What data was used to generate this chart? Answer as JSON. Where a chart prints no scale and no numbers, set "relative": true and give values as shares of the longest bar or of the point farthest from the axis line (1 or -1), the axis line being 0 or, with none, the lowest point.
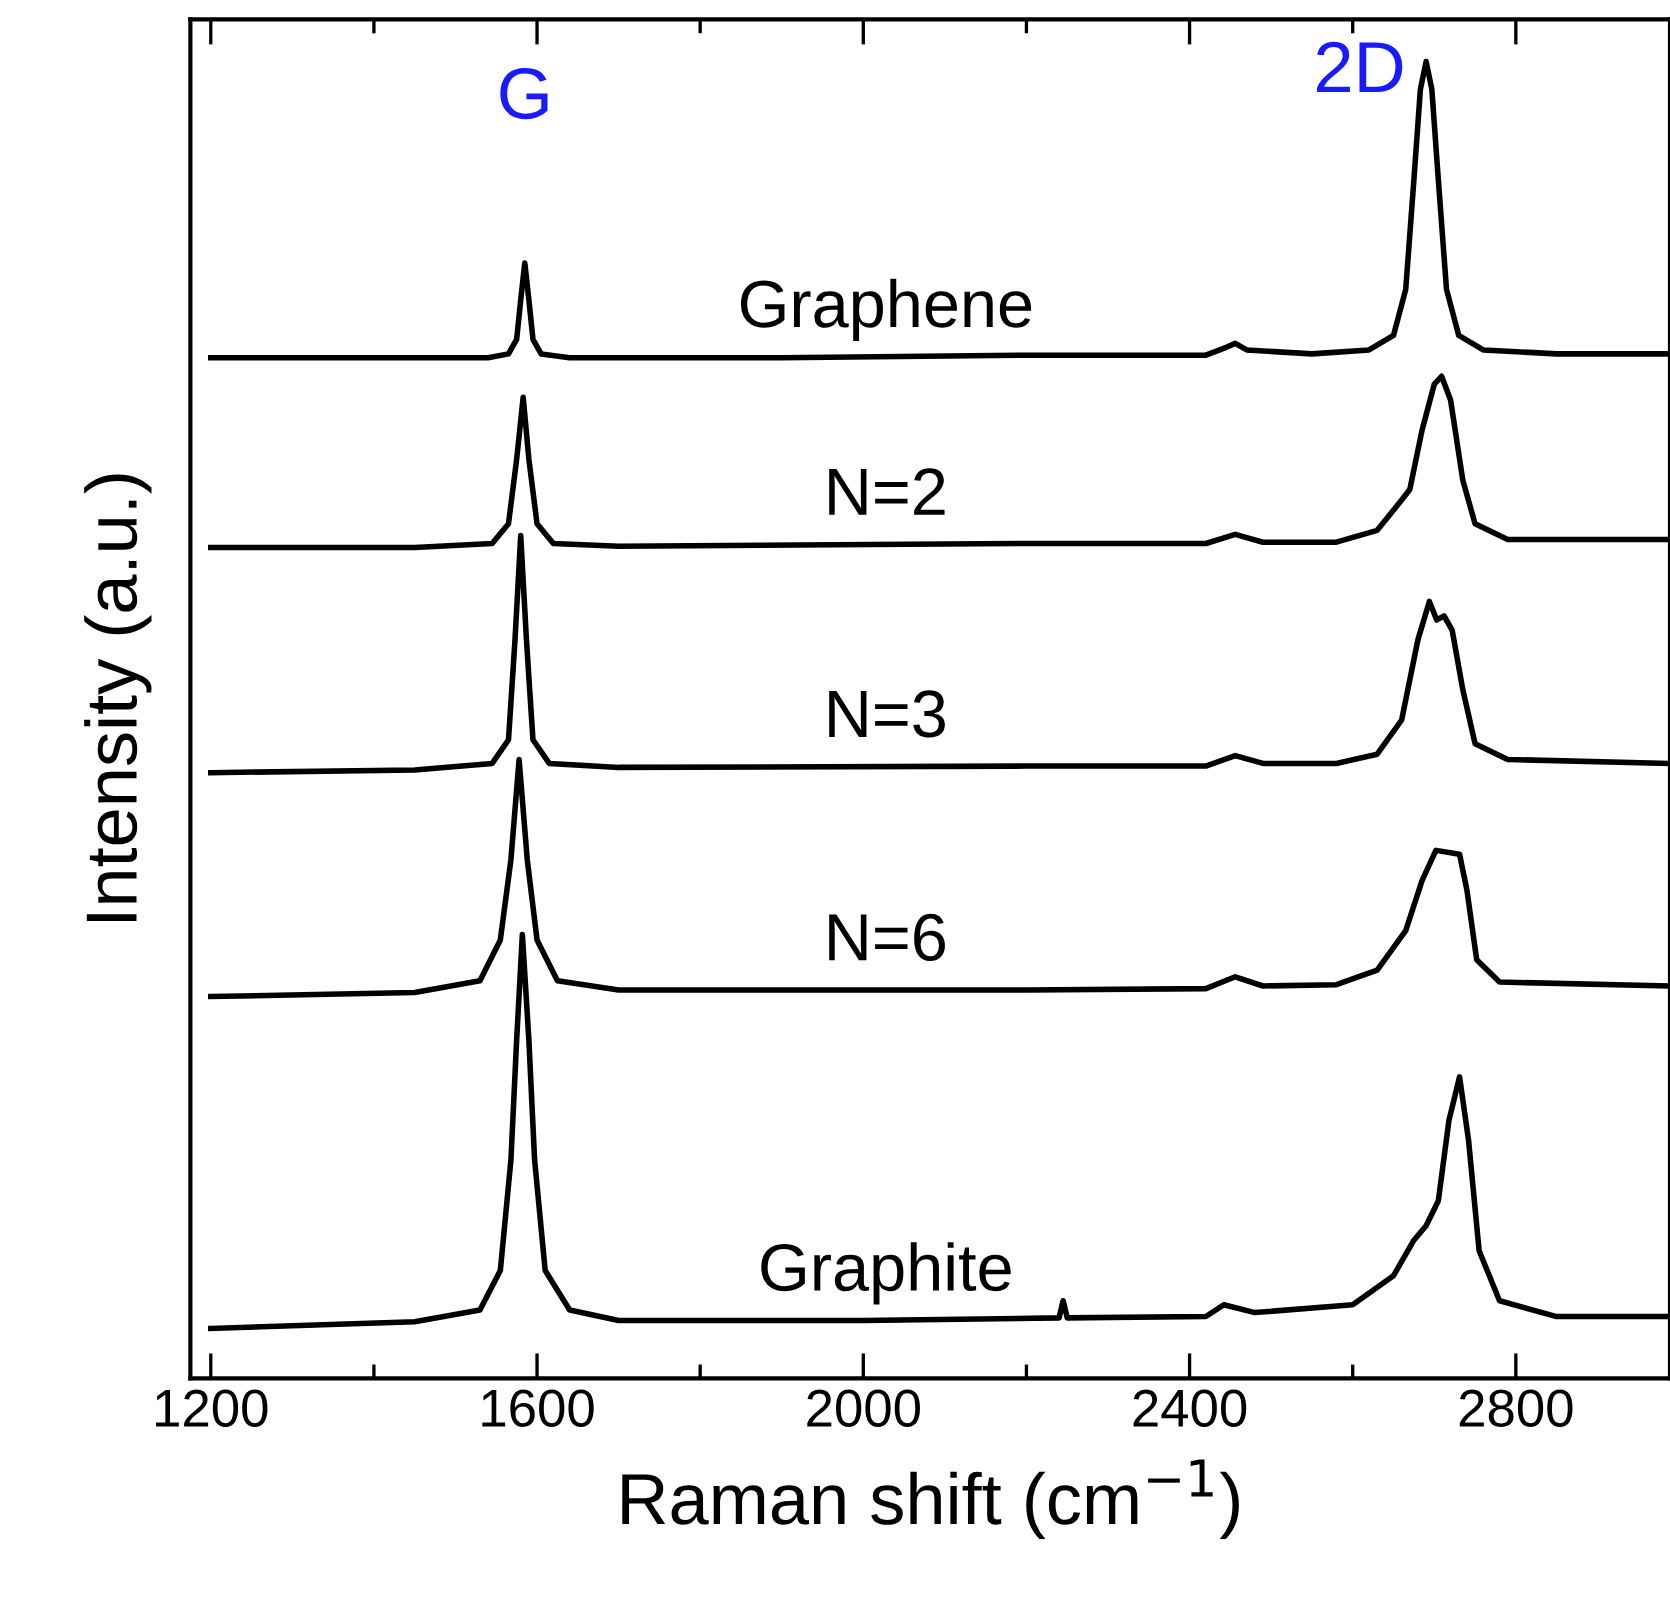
{
  "chart_data": {
    "type": "line",
    "relative": true,
    "xlabel": "Raman shift (cm$^{−1}$)",
    "ylabel": "Intensity (a.u.)",
    "xlim": [
      1175,
      2989
    ],
    "xticks": [
      1200,
      {
        "value": 1400,
        "label": null
      },
      1600,
      {
        "value": 1800,
        "label": null
      },
      2000,
      {
        "value": 2200,
        "label": null
      },
      2400,
      {
        "value": 2600,
        "label": null
      },
      2800
    ],
    "tick_labels": "x",
    "grid": false,
    "legend": false,
    "marker": "none",
    "line_style": "solid",
    "annotations": [
      "G",
      "2D"
    ],
    "series": [
      {
        "name": "Graphene",
        "color": "#000000",
        "x": [
          1200,
          1400,
          1540,
          1565,
          1575,
          1580,
          1585,
          1590,
          1595,
          1605,
          1640,
          1900,
          2200,
          2420,
          2445,
          2456,
          2470,
          2550,
          2620,
          2650,
          2665,
          2675,
          2683,
          2690,
          2697,
          2705,
          2715,
          2730,
          2760,
          2850,
          2989
        ],
        "values": [
          0.775,
          0.775,
          0.775,
          0.778,
          0.789,
          0.819,
          0.847,
          0.819,
          0.789,
          0.778,
          0.775,
          0.775,
          0.777,
          0.777,
          0.783,
          0.786,
          0.781,
          0.778,
          0.781,
          0.792,
          0.827,
          0.91,
          0.979,
          1.0,
          0.979,
          0.91,
          0.827,
          0.792,
          0.781,
          0.778,
          0.778
        ]
      },
      {
        "name": "N=2",
        "color": "#000000",
        "x": [
          1200,
          1450,
          1545,
          1565,
          1575,
          1583,
          1590,
          1600,
          1620,
          1700,
          2200,
          2420,
          2456,
          2490,
          2580,
          2630,
          2660,
          2670,
          2685,
          2700,
          2709,
          2720,
          2735,
          2750,
          2790,
          2989
        ],
        "values": [
          0.631,
          0.631,
          0.634,
          0.649,
          0.698,
          0.745,
          0.698,
          0.649,
          0.634,
          0.632,
          0.634,
          0.634,
          0.641,
          0.635,
          0.635,
          0.644,
          0.667,
          0.675,
          0.72,
          0.755,
          0.761,
          0.743,
          0.682,
          0.649,
          0.637,
          0.637
        ]
      },
      {
        "name": "N=3",
        "color": "#000000",
        "x": [
          1200,
          1450,
          1545,
          1565,
          1573,
          1580,
          1587,
          1595,
          1615,
          1700,
          2200,
          2420,
          2456,
          2490,
          2580,
          2630,
          2660,
          2680,
          2694,
          2703,
          2712,
          2722,
          2735,
          2750,
          2790,
          2989
        ],
        "values": [
          0.46,
          0.462,
          0.467,
          0.485,
          0.561,
          0.64,
          0.561,
          0.485,
          0.467,
          0.464,
          0.465,
          0.465,
          0.473,
          0.467,
          0.467,
          0.474,
          0.5,
          0.561,
          0.59,
          0.576,
          0.579,
          0.568,
          0.523,
          0.482,
          0.47,
          0.467
        ]
      },
      {
        "name": "N=6",
        "color": "#000000",
        "x": [
          1200,
          1450,
          1530,
          1555,
          1568,
          1578,
          1588,
          1600,
          1625,
          1700,
          2200,
          2420,
          2456,
          2490,
          2580,
          2630,
          2665,
          2685,
          2702,
          2731,
          2740,
          2752,
          2780,
          2989
        ],
        "values": [
          0.29,
          0.293,
          0.302,
          0.333,
          0.394,
          0.47,
          0.394,
          0.333,
          0.302,
          0.295,
          0.295,
          0.296,
          0.305,
          0.298,
          0.299,
          0.31,
          0.34,
          0.378,
          0.401,
          0.398,
          0.371,
          0.318,
          0.301,
          0.298
        ]
      },
      {
        "name": "Graphite",
        "color": "#000000",
        "x": [
          1200,
          1450,
          1530,
          1555,
          1568,
          1575,
          1582,
          1590,
          1597,
          1610,
          1640,
          1700,
          2000,
          2240,
          2245,
          2250,
          2420,
          2442,
          2480,
          2600,
          2650,
          2675,
          2690,
          2705,
          2718,
          2731,
          2742,
          2755,
          2780,
          2850,
          2989
        ],
        "values": [
          0.038,
          0.043,
          0.052,
          0.082,
          0.166,
          0.257,
          0.337,
          0.257,
          0.166,
          0.082,
          0.052,
          0.044,
          0.044,
          0.046,
          0.059,
          0.046,
          0.047,
          0.056,
          0.05,
          0.056,
          0.078,
          0.105,
          0.116,
          0.135,
          0.196,
          0.229,
          0.181,
          0.097,
          0.059,
          0.047,
          0.047
        ]
      }
    ]
  }
}
